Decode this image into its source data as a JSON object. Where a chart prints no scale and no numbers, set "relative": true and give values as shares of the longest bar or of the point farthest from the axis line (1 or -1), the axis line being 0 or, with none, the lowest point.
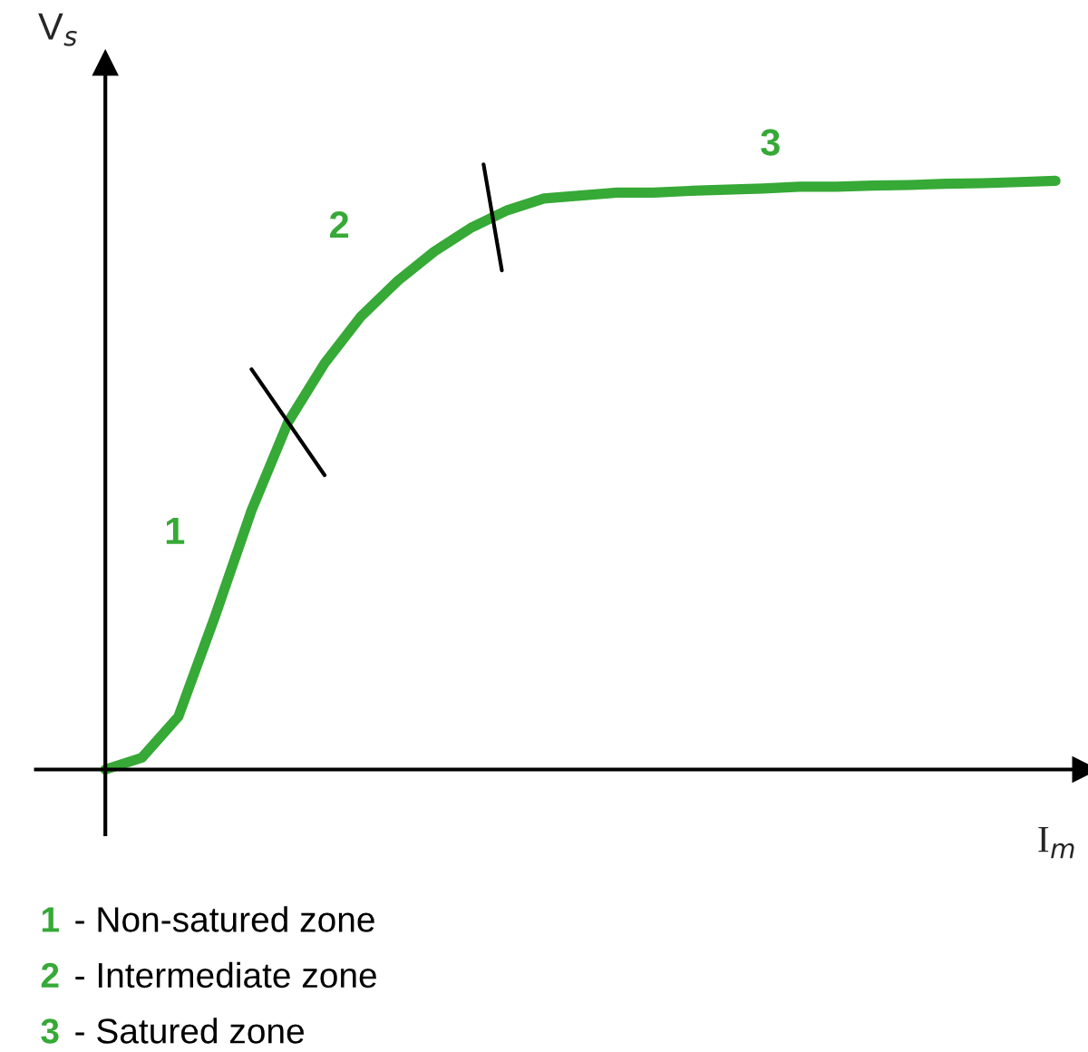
{
  "chart_data": {
    "type": "line",
    "relative": true,
    "xlabel": "I$_{m}$",
    "ylabel": "V$_{s}$",
    "categories": [
      null,
      null,
      null,
      null,
      null,
      null,
      null,
      null,
      null,
      null,
      null,
      null,
      null,
      null,
      null,
      null,
      null,
      null,
      null,
      null,
      null,
      null,
      null,
      null,
      null,
      null,
      null
    ],
    "series": [
      {
        "color": "#36a936",
        "values": [
          0,
          0.02,
          0.09,
          0.26,
          0.44,
          0.59,
          0.69,
          0.77,
          0.83,
          0.88,
          0.92,
          0.95,
          0.97,
          0.975,
          0.98,
          0.98,
          0.983,
          0.985,
          0.987,
          0.99,
          0.99,
          0.992,
          0.993,
          0.995,
          0.996,
          0.998,
          1.0
        ]
      }
    ],
    "annotations": [
      "1",
      "2",
      "3",
      "1 - Non-satured zone",
      "2 - Intermediate zone",
      "3 - Satured zone"
    ],
    "legend": false,
    "line_style": "solid",
    "marker": "none"
  }
}
